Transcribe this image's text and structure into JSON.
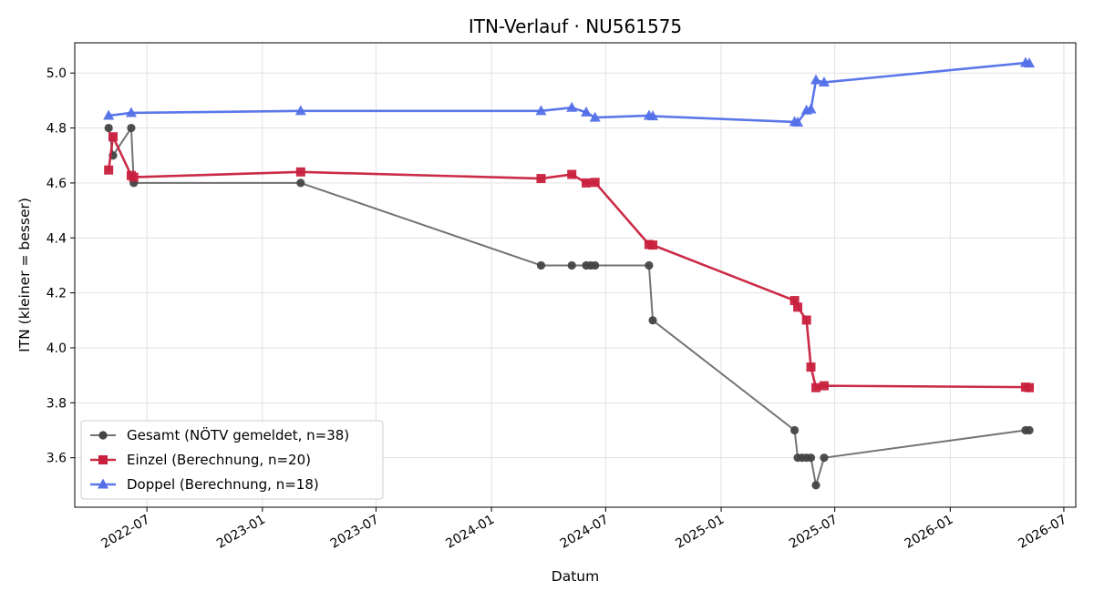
{
  "chart_data": {
    "type": "line",
    "title": "ITN-Verlauf · NU561575",
    "xlabel": "Datum",
    "ylabel": "ITN  (kleiner = besser)",
    "xlim": [
      "2022-03-08",
      "2026-07-20"
    ],
    "ylim": [
      3.42,
      5.11
    ],
    "x_ticks": [
      "2022-07",
      "2023-01",
      "2023-07",
      "2024-01",
      "2024-07",
      "2025-01",
      "2025-07",
      "2026-01",
      "2026-07"
    ],
    "y_ticks": [
      3.6,
      3.8,
      4.0,
      4.2,
      4.4,
      4.6,
      4.8,
      5.0
    ],
    "y_tick_labels": [
      "3.6",
      "3.8",
      "4.0",
      "4.2",
      "4.4",
      "4.6",
      "4.8",
      "5.0"
    ],
    "grid": true,
    "legend_position": "lower-left",
    "series": [
      {
        "name": "Gesamt (NÖTV gemeldet, n=38)",
        "color": "#444444",
        "marker": "circle",
        "points": [
          [
            "2022-05-01",
            4.8
          ],
          [
            "2022-05-08",
            4.7
          ],
          [
            "2022-06-06",
            4.8
          ],
          [
            "2022-06-10",
            4.6
          ],
          [
            "2023-03-03",
            4.6
          ],
          [
            "2024-03-20",
            4.3
          ],
          [
            "2024-05-08",
            4.3
          ],
          [
            "2024-05-31",
            4.3
          ],
          [
            "2024-06-07",
            4.3
          ],
          [
            "2024-06-14",
            4.3
          ],
          [
            "2024-09-08",
            4.3
          ],
          [
            "2024-09-14",
            4.1
          ],
          [
            "2025-04-28",
            3.7
          ],
          [
            "2025-05-03",
            3.6
          ],
          [
            "2025-05-10",
            3.6
          ],
          [
            "2025-05-17",
            3.6
          ],
          [
            "2025-05-24",
            3.6
          ],
          [
            "2025-06-01",
            3.5
          ],
          [
            "2025-06-14",
            3.6
          ],
          [
            "2026-05-01",
            3.7
          ],
          [
            "2026-05-07",
            3.7
          ]
        ]
      },
      {
        "name": "Einzel (Berechnung, n=20)",
        "color": "#c8203d",
        "marker": "square",
        "points": [
          [
            "2022-05-01",
            4.647
          ],
          [
            "2022-05-08",
            4.768
          ],
          [
            "2022-06-06",
            4.627
          ],
          [
            "2022-06-10",
            4.621
          ],
          [
            "2023-03-03",
            4.64
          ],
          [
            "2024-03-20",
            4.616
          ],
          [
            "2024-05-08",
            4.631
          ],
          [
            "2024-05-31",
            4.6
          ],
          [
            "2024-06-14",
            4.602
          ],
          [
            "2024-09-08",
            4.376
          ],
          [
            "2024-09-14",
            4.374
          ],
          [
            "2025-04-28",
            4.172
          ],
          [
            "2025-05-03",
            4.148
          ],
          [
            "2025-05-17",
            4.101
          ],
          [
            "2025-05-24",
            3.93
          ],
          [
            "2025-06-01",
            3.855
          ],
          [
            "2025-06-14",
            3.862
          ],
          [
            "2026-05-01",
            3.857
          ],
          [
            "2026-05-07",
            3.855
          ]
        ]
      },
      {
        "name": "Doppel (Berechnung, n=18)",
        "color": "#5370e8",
        "marker": "triangle",
        "points": [
          [
            "2022-05-01",
            4.845
          ],
          [
            "2022-06-06",
            4.855
          ],
          [
            "2023-03-03",
            4.862
          ],
          [
            "2024-03-20",
            4.862
          ],
          [
            "2024-05-08",
            4.874
          ],
          [
            "2024-05-31",
            4.857
          ],
          [
            "2024-06-14",
            4.838
          ],
          [
            "2024-09-08",
            4.845
          ],
          [
            "2024-09-14",
            4.843
          ],
          [
            "2025-04-28",
            4.822
          ],
          [
            "2025-05-03",
            4.82
          ],
          [
            "2025-05-17",
            4.864
          ],
          [
            "2025-05-24",
            4.868
          ],
          [
            "2025-06-01",
            4.974
          ],
          [
            "2025-06-14",
            4.966
          ],
          [
            "2026-05-01",
            5.037
          ],
          [
            "2026-05-07",
            5.035
          ]
        ]
      }
    ]
  }
}
